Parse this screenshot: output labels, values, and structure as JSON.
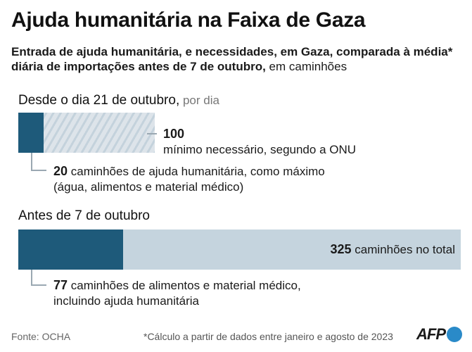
{
  "title": "Ajuda humanitária na Faixa de Gaza",
  "subtitle": {
    "bold": "Entrada de ajuda humanitária, e necessidades, em Gaza, comparada à média* diária de importações antes de 7 de outubro,",
    "normal": " em caminhões"
  },
  "section1": {
    "title": "Desde o dia 21 de outubro,",
    "unit": " por dia"
  },
  "section2": {
    "title": "Antes de 7 de outubro"
  },
  "annotations": {
    "needed_value": "100",
    "needed_text": "mínimo necessário, segundo a ONU",
    "max_value": "20",
    "max_text": " caminhões de ajuda humanitária, como máximo (água, alimentos e material médico)",
    "total_value": "325",
    "total_text": " caminhões no total",
    "food_value": "77",
    "food_text": " caminhões de alimentos e material médico, incluindo ajuda humanitária"
  },
  "footer": {
    "source": "Fonte: OCHA",
    "footnote": "*Cálculo a partir de dados entre janeiro e agosto de 2023",
    "logo": "AFP"
  },
  "colors": {
    "dark": "#1e5a7a",
    "light": "#c5d4de",
    "hatch": "#dde4ea"
  },
  "chart_data": [
    {
      "type": "bar",
      "title": "Desde o dia 21 de outubro, por dia",
      "categories": [
        "máximo de caminhões de ajuda humanitária",
        "mínimo necessário, segundo a ONU"
      ],
      "values": [
        20,
        100
      ],
      "unit": "caminhões por dia"
    },
    {
      "type": "bar",
      "title": "Antes de 7 de outubro",
      "categories": [
        "caminhões de alimentos e material médico",
        "caminhões no total"
      ],
      "values": [
        77,
        325
      ],
      "unit": "caminhões por dia"
    }
  ]
}
